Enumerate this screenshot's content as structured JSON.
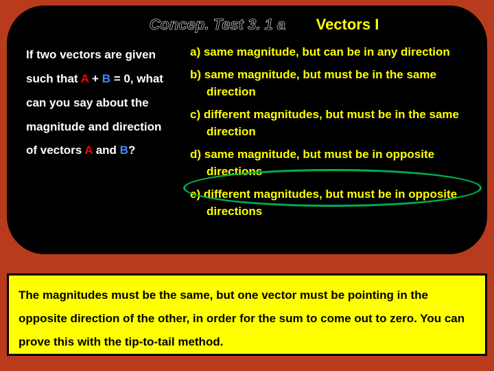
{
  "slide": {
    "background_color": "#b83b1e",
    "top_panel": {
      "bg": "#000000",
      "border_radius": 55
    },
    "bottom_panel": {
      "bg": "#ffff00",
      "border_color": "#000000"
    }
  },
  "header": {
    "left": "Concep. Test 3. 1 a",
    "left_color": "#000000",
    "left_stroke": "#ffffff",
    "right": "Vectors I",
    "right_color": "#ffff00"
  },
  "question": {
    "line1_a": "If two vectors are given",
    "line2_a": "such that ",
    "vecA": "A",
    "plus": " + ",
    "vecB": "B",
    "line2_b": " = 0, what",
    "line3": "can you say about the",
    "line4": "magnitude and direction",
    "line5_a": "of vectors ",
    "and": " and ",
    "line5_b": "?",
    "text_color": "#ffffff",
    "vecA_color": "#ff0000",
    "vecB_color": "#4488ff"
  },
  "answers": {
    "a": "a)  same magnitude, but can be in any direction",
    "b": "b)  same magnitude, but must be in the same direction",
    "c": "c)  different magnitudes, but must be in the same direction",
    "d": "d)  same magnitude, but must be in opposite directions",
    "e": "e) different magnitudes, but must be in opposite directions",
    "text_color": "#ffff00",
    "highlight": {
      "index": "d",
      "ellipse_color": "#00b050",
      "ellipse_border_width": 3
    }
  },
  "explanation": {
    "text": "The magnitudes must be the same, but one vector must be pointing in the opposite direction of the other, in order for the sum to come out to zero.  You can prove this with the tip-to-tail method.",
    "text_color": "#000000"
  }
}
